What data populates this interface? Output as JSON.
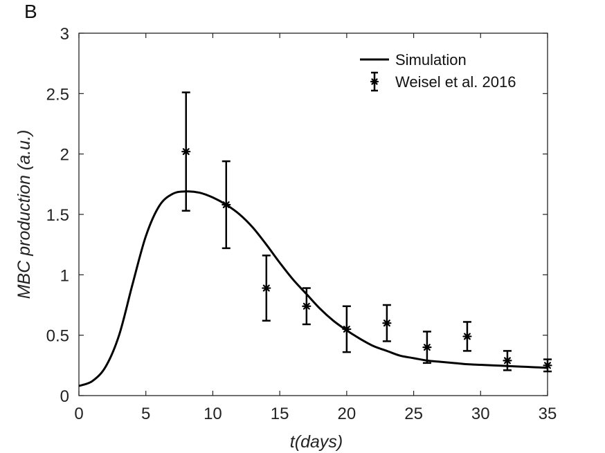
{
  "panel_label": "B",
  "chart_data": {
    "type": "line",
    "xlabel": "t(days)",
    "ylabel": "MBC production (a.u.)",
    "xlim": [
      0,
      35
    ],
    "ylim": [
      0,
      3
    ],
    "x_ticks": [
      0,
      5,
      10,
      15,
      20,
      25,
      30,
      35
    ],
    "y_ticks": [
      0,
      0.5,
      1,
      1.5,
      2,
      2.5,
      3
    ],
    "x_tick_labels": [
      "0",
      "5",
      "10",
      "15",
      "20",
      "25",
      "30",
      "35"
    ],
    "y_tick_labels": [
      "0",
      "0.5",
      "1",
      "1.5",
      "2",
      "2.5",
      "3"
    ],
    "grid": false,
    "legend_position": "top-right",
    "series": [
      {
        "name": "Simulation",
        "kind": "line",
        "color": "#000000",
        "x": [
          0,
          1,
          2,
          3,
          4,
          5,
          6,
          7,
          8,
          9,
          10,
          11,
          12,
          13,
          14,
          15,
          16,
          17,
          18,
          19,
          20,
          21,
          22,
          23,
          24,
          25,
          26,
          27,
          28,
          29,
          30,
          31,
          32,
          33,
          34,
          35
        ],
        "y": [
          0.08,
          0.12,
          0.24,
          0.5,
          0.92,
          1.32,
          1.57,
          1.67,
          1.69,
          1.68,
          1.64,
          1.58,
          1.5,
          1.39,
          1.25,
          1.1,
          0.96,
          0.84,
          0.72,
          0.62,
          0.54,
          0.47,
          0.41,
          0.37,
          0.33,
          0.31,
          0.29,
          0.28,
          0.27,
          0.26,
          0.255,
          0.25,
          0.245,
          0.24,
          0.235,
          0.23
        ]
      },
      {
        "name": "Weisel et al. 2016",
        "kind": "errorbar",
        "color": "#000000",
        "x": [
          8,
          11,
          14,
          17,
          20,
          23,
          26,
          29,
          32,
          35
        ],
        "y": [
          2.02,
          1.58,
          0.89,
          0.74,
          0.55,
          0.6,
          0.4,
          0.49,
          0.29,
          0.25
        ],
        "yerr": [
          0.49,
          0.36,
          0.27,
          0.15,
          0.19,
          0.15,
          0.13,
          0.12,
          0.08,
          0.05
        ]
      }
    ]
  }
}
